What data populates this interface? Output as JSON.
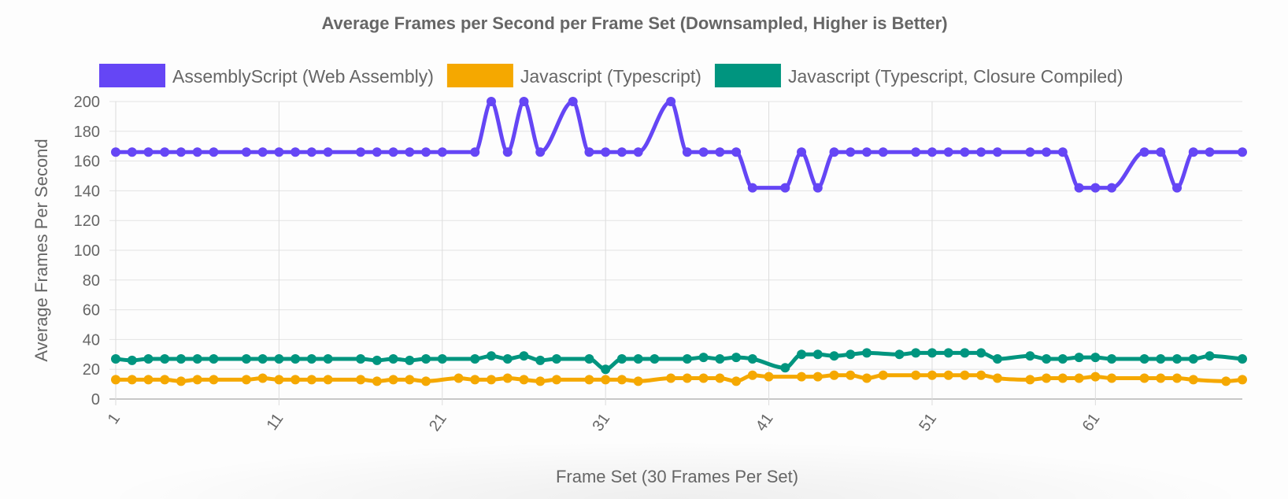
{
  "chart_data": {
    "type": "line",
    "title": "Average Frames per Second per Frame Set (Downsampled, Higher is Better)",
    "xlabel": "Frame Set (30 Frames Per Set)",
    "ylabel": "Average Frames Per Second",
    "ylim": [
      0,
      200
    ],
    "y_ticks": [
      "0",
      "20",
      "40",
      "60",
      "80",
      "100",
      "120",
      "140",
      "160",
      "180",
      "200"
    ],
    "xlim": [
      1,
      70
    ],
    "x_ticks": [
      "1",
      "11",
      "21",
      "31",
      "41",
      "51",
      "61"
    ],
    "grid": true,
    "legend_position": "top",
    "series": [
      {
        "name": "AssemblyScript (Web Assembly)",
        "color": "#6546f5",
        "points": [
          [
            1,
            166
          ],
          [
            2,
            166
          ],
          [
            3,
            166
          ],
          [
            4,
            166
          ],
          [
            5,
            166
          ],
          [
            6,
            166
          ],
          [
            7,
            166
          ],
          [
            9,
            166
          ],
          [
            10,
            166
          ],
          [
            11,
            166
          ],
          [
            12,
            166
          ],
          [
            13,
            166
          ],
          [
            14,
            166
          ],
          [
            16,
            166
          ],
          [
            17,
            166
          ],
          [
            18,
            166
          ],
          [
            19,
            166
          ],
          [
            20,
            166
          ],
          [
            21,
            166
          ],
          [
            23,
            166
          ],
          [
            24,
            200
          ],
          [
            25,
            166
          ],
          [
            26,
            200
          ],
          [
            27,
            166
          ],
          [
            29,
            200
          ],
          [
            30,
            166
          ],
          [
            31,
            166
          ],
          [
            32,
            166
          ],
          [
            33,
            166
          ],
          [
            35,
            200
          ],
          [
            36,
            166
          ],
          [
            37,
            166
          ],
          [
            38,
            166
          ],
          [
            39,
            166
          ],
          [
            40,
            142
          ],
          [
            42,
            142
          ],
          [
            43,
            166
          ],
          [
            44,
            142
          ],
          [
            45,
            166
          ],
          [
            46,
            166
          ],
          [
            47,
            166
          ],
          [
            48,
            166
          ],
          [
            50,
            166
          ],
          [
            51,
            166
          ],
          [
            52,
            166
          ],
          [
            53,
            166
          ],
          [
            54,
            166
          ],
          [
            55,
            166
          ],
          [
            57,
            166
          ],
          [
            58,
            166
          ],
          [
            59,
            166
          ],
          [
            60,
            142
          ],
          [
            61,
            142
          ],
          [
            62,
            142
          ],
          [
            64,
            166
          ],
          [
            65,
            166
          ],
          [
            66,
            142
          ],
          [
            67,
            166
          ],
          [
            68,
            166
          ],
          [
            70,
            166
          ]
        ]
      },
      {
        "name": "Javascript (Typescript)",
        "color": "#f5a800",
        "points": [
          [
            1,
            13
          ],
          [
            2,
            13
          ],
          [
            3,
            13
          ],
          [
            4,
            13
          ],
          [
            5,
            12
          ],
          [
            6,
            13
          ],
          [
            7,
            13
          ],
          [
            9,
            13
          ],
          [
            10,
            14
          ],
          [
            11,
            13
          ],
          [
            12,
            13
          ],
          [
            13,
            13
          ],
          [
            14,
            13
          ],
          [
            16,
            13
          ],
          [
            17,
            12
          ],
          [
            18,
            13
          ],
          [
            19,
            13
          ],
          [
            20,
            12
          ],
          [
            22,
            14
          ],
          [
            23,
            13
          ],
          [
            24,
            13
          ],
          [
            25,
            14
          ],
          [
            26,
            13
          ],
          [
            27,
            12
          ],
          [
            28,
            13
          ],
          [
            30,
            13
          ],
          [
            31,
            13
          ],
          [
            32,
            13
          ],
          [
            33,
            12
          ],
          [
            35,
            14
          ],
          [
            36,
            14
          ],
          [
            37,
            14
          ],
          [
            38,
            14
          ],
          [
            39,
            12
          ],
          [
            40,
            16
          ],
          [
            41,
            15
          ],
          [
            43,
            15
          ],
          [
            44,
            15
          ],
          [
            45,
            16
          ],
          [
            46,
            16
          ],
          [
            47,
            14
          ],
          [
            48,
            16
          ],
          [
            50,
            16
          ],
          [
            51,
            16
          ],
          [
            52,
            16
          ],
          [
            53,
            16
          ],
          [
            54,
            16
          ],
          [
            55,
            14
          ],
          [
            57,
            13
          ],
          [
            58,
            14
          ],
          [
            59,
            14
          ],
          [
            60,
            14
          ],
          [
            61,
            15
          ],
          [
            62,
            14
          ],
          [
            64,
            14
          ],
          [
            65,
            14
          ],
          [
            66,
            14
          ],
          [
            67,
            13
          ],
          [
            69,
            12
          ],
          [
            70,
            13
          ]
        ]
      },
      {
        "name": "Javascript (Typescript, Closure Compiled)",
        "color": "#00957f",
        "points": [
          [
            1,
            27
          ],
          [
            2,
            26
          ],
          [
            3,
            27
          ],
          [
            4,
            27
          ],
          [
            5,
            27
          ],
          [
            6,
            27
          ],
          [
            7,
            27
          ],
          [
            9,
            27
          ],
          [
            10,
            27
          ],
          [
            11,
            27
          ],
          [
            12,
            27
          ],
          [
            13,
            27
          ],
          [
            14,
            27
          ],
          [
            16,
            27
          ],
          [
            17,
            26
          ],
          [
            18,
            27
          ],
          [
            19,
            26
          ],
          [
            20,
            27
          ],
          [
            21,
            27
          ],
          [
            23,
            27
          ],
          [
            24,
            29
          ],
          [
            25,
            27
          ],
          [
            26,
            29
          ],
          [
            27,
            26
          ],
          [
            28,
            27
          ],
          [
            30,
            27
          ],
          [
            31,
            20
          ],
          [
            32,
            27
          ],
          [
            33,
            27
          ],
          [
            34,
            27
          ],
          [
            36,
            27
          ],
          [
            37,
            28
          ],
          [
            38,
            27
          ],
          [
            39,
            28
          ],
          [
            40,
            27
          ],
          [
            42,
            21
          ],
          [
            43,
            30
          ],
          [
            44,
            30
          ],
          [
            45,
            29
          ],
          [
            46,
            30
          ],
          [
            47,
            31
          ],
          [
            49,
            30
          ],
          [
            50,
            31
          ],
          [
            51,
            31
          ],
          [
            52,
            31
          ],
          [
            53,
            31
          ],
          [
            54,
            31
          ],
          [
            55,
            27
          ],
          [
            57,
            29
          ],
          [
            58,
            27
          ],
          [
            59,
            27
          ],
          [
            60,
            28
          ],
          [
            61,
            28
          ],
          [
            62,
            27
          ],
          [
            64,
            27
          ],
          [
            65,
            27
          ],
          [
            66,
            27
          ],
          [
            67,
            27
          ],
          [
            68,
            29
          ],
          [
            70,
            27
          ]
        ]
      }
    ]
  }
}
